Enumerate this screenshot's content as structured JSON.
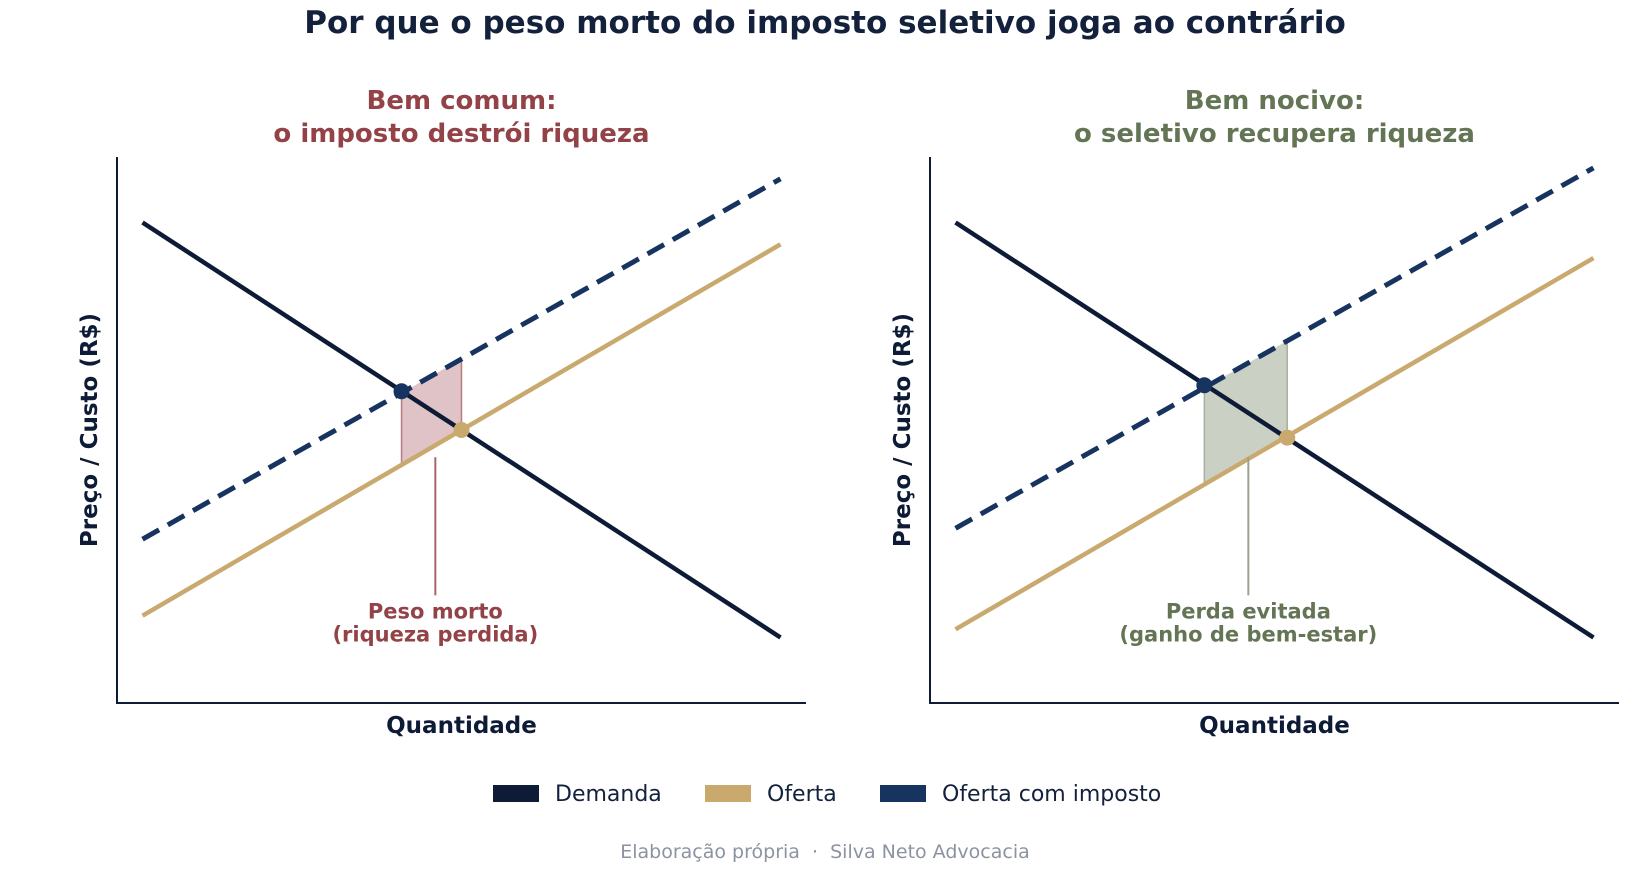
{
  "title": "Por que o peso morto do imposto seletivo joga ao contrário",
  "colors": {
    "title": "#13213c",
    "demand": "#0d1b36",
    "supply": "#c9a96e",
    "taxed_supply": "#17335f",
    "left_accent": "#934347",
    "left_fill": "#dfc3c6",
    "right_accent": "#647556",
    "right_fill": "#cbd0c5",
    "axis": "#0d1b36",
    "footer": "#8c93a0"
  },
  "legend": {
    "items": [
      {
        "label": "Demanda",
        "color_key": "demand"
      },
      {
        "label": "Oferta",
        "color_key": "supply"
      },
      {
        "label": "Oferta com imposto",
        "color_key": "taxed_supply"
      }
    ]
  },
  "footer": {
    "text": "Elaboração própria  ·  Silva Neto Advocacia"
  },
  "chart_data": [
    {
      "type": "line",
      "title": "Bem comum:",
      "subtitle": "o imposto destrói riqueza",
      "xlabel": "Quantidade",
      "ylabel": "Preço / Custo (R$)",
      "xlim": [
        0,
        10.8
      ],
      "ylim": [
        0,
        10
      ],
      "grid": false,
      "series": [
        {
          "name": "Demanda",
          "x": [
            0.4,
            10.4
          ],
          "y": [
            8.8,
            1.2
          ]
        },
        {
          "name": "Oferta",
          "x": [
            0.4,
            10.4
          ],
          "y": [
            1.6,
            8.4
          ]
        },
        {
          "name": "Oferta com imposto",
          "x": [
            0.4,
            10.4
          ],
          "y": [
            3.0,
            9.6
          ]
        }
      ],
      "points": [
        {
          "name": "equilibrio-com-imposto",
          "x": 4.46,
          "y": 5.71
        },
        {
          "name": "equilibrio-sem-imposto",
          "x": 5.4,
          "y": 5.0
        }
      ],
      "shaded_area": {
        "x_from": 4.46,
        "x_to": 5.4,
        "region": "peso morto"
      },
      "annotation": {
        "lines": [
          "Peso morto",
          "(riqueza perdida)"
        ],
        "x": 4.99,
        "y": 1.55,
        "arrow_to": [
          4.99,
          4.5
        ]
      }
    },
    {
      "type": "line",
      "title": "Bem nocivo:",
      "subtitle": "o seletivo recupera riqueza",
      "xlabel": "Quantidade",
      "ylabel": "Preço / Custo (R$)",
      "xlim": [
        0,
        10.8
      ],
      "ylim": [
        0,
        10
      ],
      "grid": false,
      "series": [
        {
          "name": "Demanda",
          "x": [
            0.4,
            10.4
          ],
          "y": [
            8.8,
            1.2
          ]
        },
        {
          "name": "Oferta",
          "x": [
            0.4,
            10.4
          ],
          "y": [
            1.35,
            8.15
          ]
        },
        {
          "name": "Oferta com imposto",
          "x": [
            0.4,
            10.4
          ],
          "y": [
            3.2,
            9.8
          ]
        }
      ],
      "points": [
        {
          "name": "equilibrio-com-imposto",
          "x": 4.3,
          "y": 5.82
        },
        {
          "name": "equilibrio-sem-imposto",
          "x": 5.6,
          "y": 4.86
        }
      ],
      "shaded_area": {
        "x_from": 4.3,
        "x_to": 5.6,
        "region": "perda evitada"
      },
      "annotation": {
        "lines": [
          "Perda evitada",
          "(ganho de bem-estar)"
        ],
        "x": 4.99,
        "y": 1.55,
        "arrow_to": [
          4.99,
          4.5
        ]
      }
    }
  ]
}
